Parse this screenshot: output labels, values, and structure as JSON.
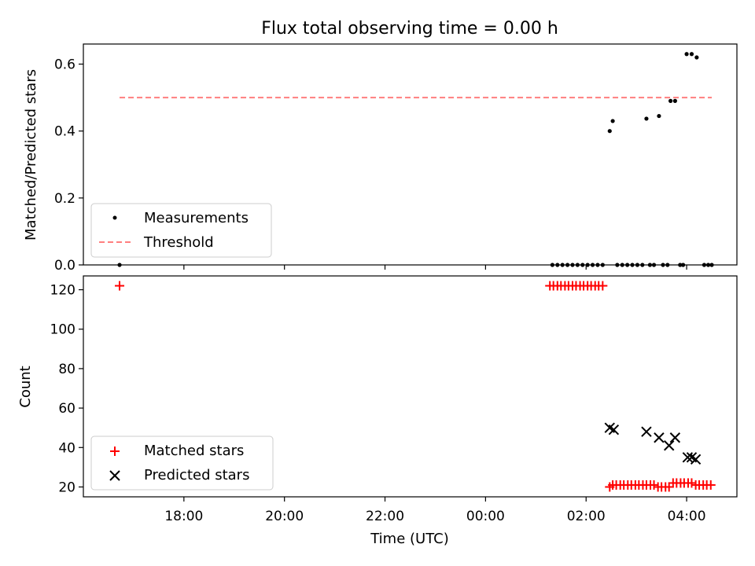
{
  "chart_data": [
    {
      "type": "scatter",
      "title": "Flux total observing time = 0.00 h",
      "xlabel": "",
      "ylabel": "Matched/Predicted stars",
      "ylim": [
        0,
        0.66
      ],
      "yticks": [
        "0.0",
        "0.2",
        "0.4",
        "0.6"
      ],
      "ytick_values": [
        0,
        0.2,
        0.4,
        0.6
      ],
      "grid": false,
      "legend_position": "lower-left",
      "series": [
        {
          "name": "Measurements",
          "marker": "dot",
          "color": "#000000",
          "x": [
            16.72,
            1.33,
            1.43,
            1.53,
            1.63,
            1.73,
            1.83,
            1.93,
            2.03,
            2.13,
            2.23,
            2.33,
            2.47,
            2.53,
            2.62,
            2.72,
            2.82,
            2.92,
            3.02,
            3.12,
            3.2,
            3.27,
            3.35,
            3.45,
            3.53,
            3.62,
            3.68,
            3.77,
            3.87,
            3.93,
            4.0,
            4.1,
            4.2,
            4.35,
            4.43,
            4.5
          ],
          "y": [
            0.0,
            0.0,
            0.0,
            0.0,
            0.0,
            0.0,
            0.0,
            0.0,
            0.0,
            0.0,
            0.0,
            0.0,
            0.4,
            0.43,
            0.0,
            0.0,
            0.0,
            0.0,
            0.0,
            0.0,
            0.437,
            0.0,
            0.0,
            0.445,
            0.0,
            0.0,
            0.49,
            0.49,
            0.0,
            0.0,
            0.63,
            0.63,
            0.62,
            0.0,
            0.0,
            0.0
          ]
        },
        {
          "name": "Threshold",
          "marker": "dashed-line",
          "color": "#ff7f7f",
          "x": [
            16.72,
            4.5
          ],
          "y": [
            0.5,
            0.5
          ]
        }
      ]
    },
    {
      "type": "scatter",
      "title": "",
      "xlabel": "Time (UTC)",
      "ylabel": "Count",
      "ylim": [
        15,
        127
      ],
      "yticks": [
        "20",
        "40",
        "60",
        "80",
        "100",
        "120"
      ],
      "ytick_values": [
        20,
        40,
        60,
        80,
        100,
        120
      ],
      "xticks": [
        "18:00",
        "20:00",
        "22:00",
        "00:00",
        "02:00",
        "04:00"
      ],
      "xtick_values": [
        18,
        20,
        22,
        0,
        2,
        4
      ],
      "xlim": [
        "16:00",
        "05:00"
      ],
      "grid": false,
      "legend_position": "lower-left",
      "series": [
        {
          "name": "Matched stars",
          "marker": "plus",
          "color": "#ff0000",
          "x": [
            16.72,
            1.28,
            1.35,
            1.43,
            1.5,
            1.58,
            1.65,
            1.73,
            1.8,
            1.88,
            1.95,
            2.03,
            2.1,
            2.18,
            2.25,
            2.33,
            2.47,
            2.53,
            2.6,
            2.68,
            2.75,
            2.83,
            2.9,
            2.98,
            3.05,
            3.13,
            3.2,
            3.28,
            3.35,
            3.43,
            3.5,
            3.58,
            3.65,
            3.73,
            3.8,
            3.88,
            3.95,
            4.03,
            4.1,
            4.18,
            4.25,
            4.33,
            4.4,
            4.48
          ],
          "y": [
            122,
            122,
            122,
            122,
            122,
            122,
            122,
            122,
            122,
            122,
            122,
            122,
            122,
            122,
            122,
            122,
            20,
            21,
            21,
            21,
            21,
            21,
            21,
            21,
            21,
            21,
            21,
            21,
            21,
            20,
            20,
            20,
            20,
            22,
            22,
            22,
            22,
            22,
            22,
            21,
            21,
            21,
            21,
            21
          ]
        },
        {
          "name": "Predicted stars",
          "marker": "x",
          "color": "#000000",
          "x": [
            2.47,
            2.55,
            3.2,
            3.45,
            3.65,
            3.77,
            4.02,
            4.1,
            4.18
          ],
          "y": [
            50,
            49,
            48,
            45,
            41,
            45,
            35,
            35,
            34
          ]
        }
      ]
    }
  ]
}
